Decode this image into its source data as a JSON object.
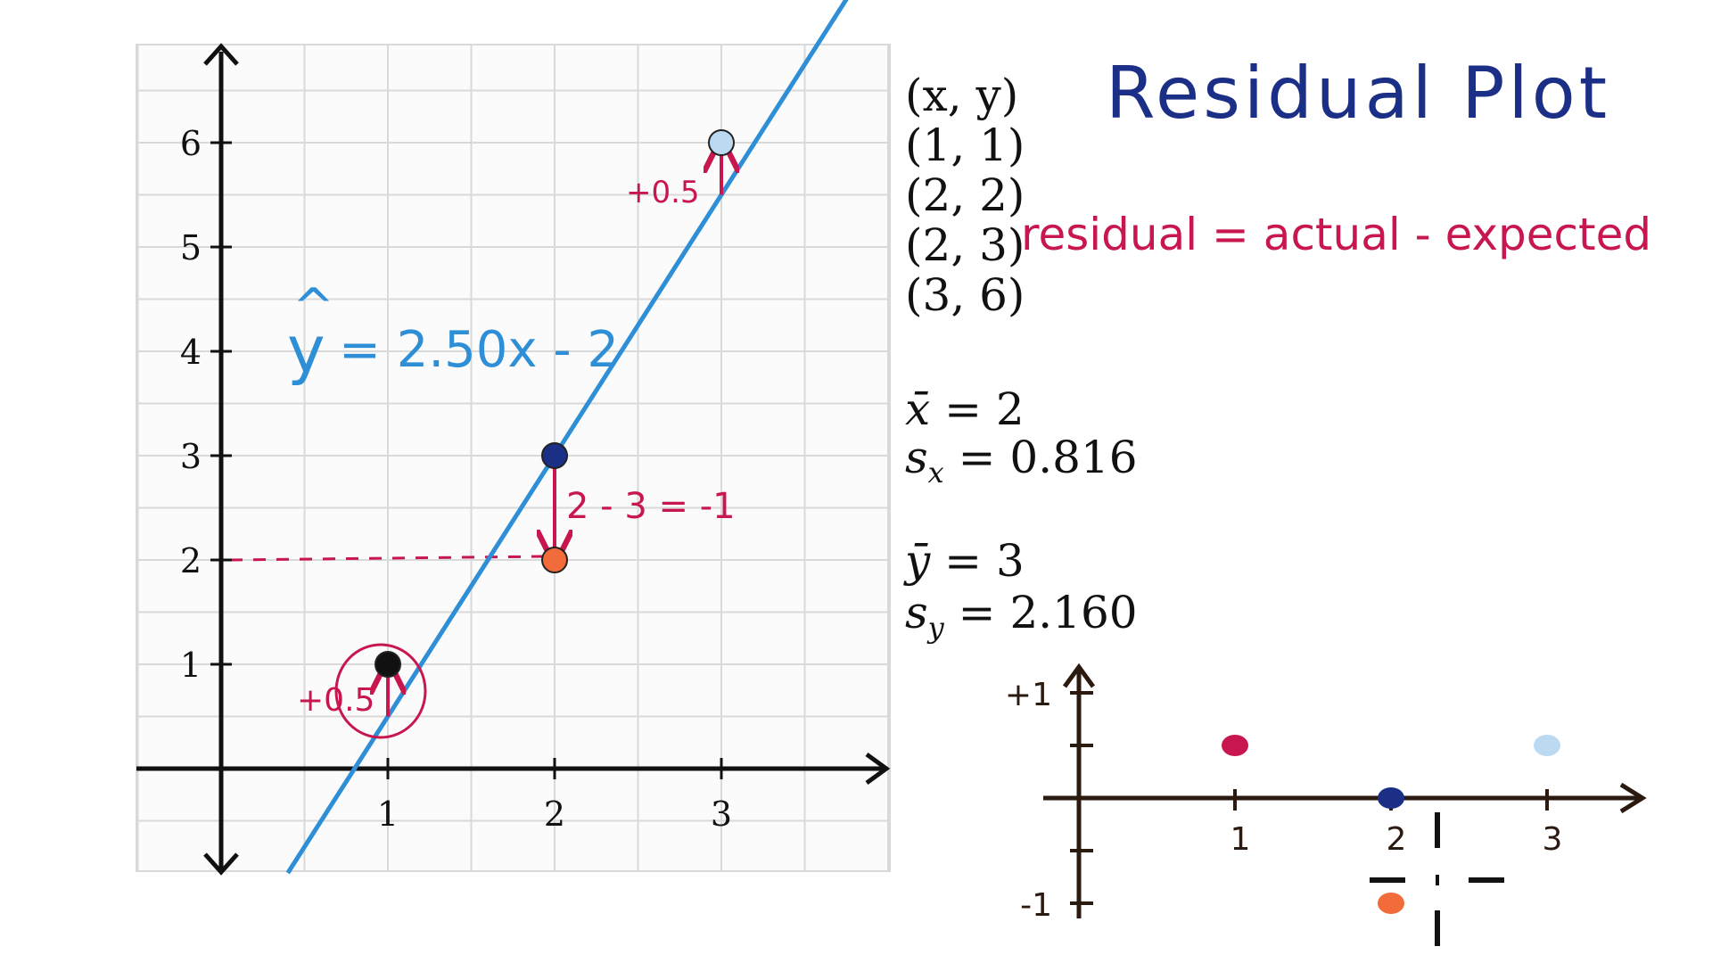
{
  "title": "Residual Plot",
  "points_header": "(x, y)",
  "points_text": [
    "(1, 1)",
    "(2, 2)",
    "(2, 3)",
    "(3, 6)"
  ],
  "residual_formula": "residual = actual - expected",
  "regression_equation": "= 2.50x - 2",
  "regression_symbol": "y",
  "stats": {
    "x_bar_label": "x̄",
    "x_bar_value": "= 2",
    "s_x_label": "s",
    "s_x_sub": "x",
    "s_x_value": "= 0.816",
    "y_bar_label": "ȳ",
    "y_bar_value": "= 3",
    "s_y_label": "s",
    "s_y_sub": "y",
    "s_y_value": "= 2.160"
  },
  "annotations": {
    "res_1": "+0.5",
    "res_2": "2 - 3 = -1",
    "res_3": "+0.5"
  },
  "colors": {
    "grid": "#d9d9d9",
    "axis": "#111111",
    "line": "#2e8ed6",
    "annotation": "#c8174e",
    "title": "#1b2f86",
    "point_black": "#111111",
    "point_navy": "#1b2f86",
    "point_orange": "#f26b3a",
    "point_lightblue": "#bcd9f2",
    "point_pink": "#c8174e",
    "residual_axis": "#2b1a10"
  },
  "chart_data": [
    {
      "type": "scatter",
      "name": "scatter",
      "xlim": [
        -0.5,
        4.0
      ],
      "ylim": [
        -1.0,
        7.0
      ],
      "x_ticks": [
        "1",
        "2",
        "3"
      ],
      "y_ticks": [
        "1",
        "2",
        "3",
        "4",
        "5",
        "6"
      ],
      "grid": true,
      "points": [
        {
          "x": 1,
          "y": 1,
          "color": "#111111"
        },
        {
          "x": 2,
          "y": 2,
          "color": "#f26b3a"
        },
        {
          "x": 2,
          "y": 3,
          "color": "#1b2f86"
        },
        {
          "x": 3,
          "y": 6,
          "color": "#bcd9f2"
        }
      ],
      "regression_line": {
        "slope": 2.5,
        "intercept": -2
      },
      "residual_arrows": [
        {
          "x": 1,
          "from": 0.5,
          "to": 1
        },
        {
          "x": 2,
          "from": 3,
          "to": 2
        },
        {
          "x": 3,
          "from": 5.5,
          "to": 6
        }
      ]
    },
    {
      "type": "scatter",
      "name": "residual-plot",
      "x_ticks": [
        "1",
        "2",
        "3"
      ],
      "y_ticks": [
        "+1",
        "-1"
      ],
      "points": [
        {
          "x": 1,
          "y": 0.5,
          "color": "#c8174e"
        },
        {
          "x": 2,
          "y": 0,
          "color": "#1b2f86"
        },
        {
          "x": 2,
          "y": -1,
          "color": "#f26b3a"
        },
        {
          "x": 3,
          "y": 0.5,
          "color": "#bcd9f2"
        }
      ]
    }
  ]
}
